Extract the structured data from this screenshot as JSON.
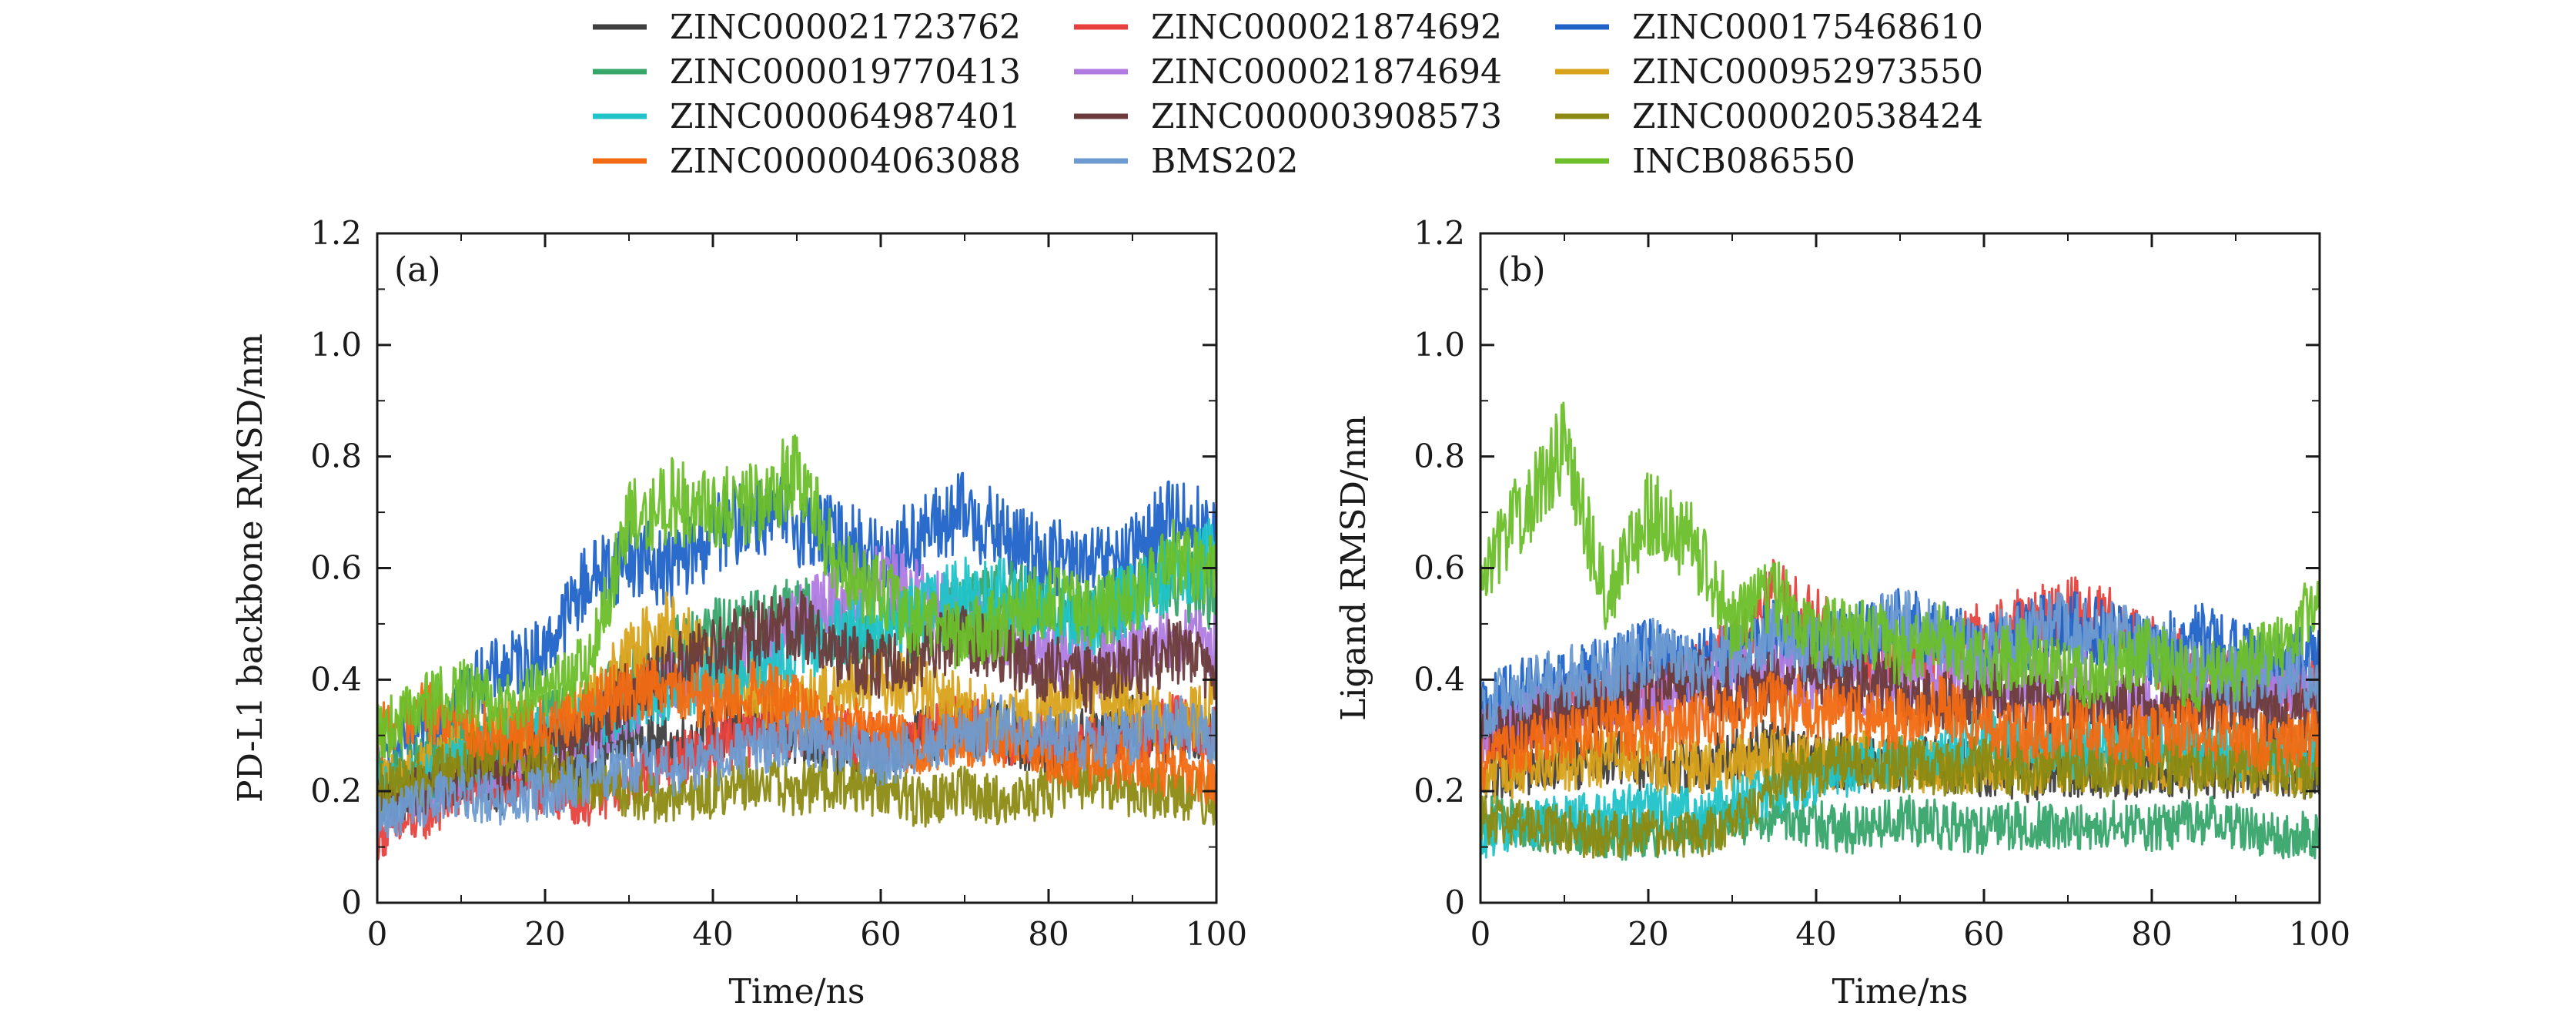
{
  "legend": {
    "items": [
      {
        "label": "ZINC000021723762",
        "color": "#3f3f3f"
      },
      {
        "label": "ZINC000021874692",
        "color": "#e8413d"
      },
      {
        "label": "ZINC000175468610",
        "color": "#1f63c9"
      },
      {
        "label": "ZINC000019770413",
        "color": "#36a56a"
      },
      {
        "label": "ZINC000021874694",
        "color": "#b07be0"
      },
      {
        "label": "ZINC000952973550",
        "color": "#d9a21b"
      },
      {
        "label": "ZINC000064987401",
        "color": "#20c3c8"
      },
      {
        "label": "ZINC000003908573",
        "color": "#6b3b3b"
      },
      {
        "label": "ZINC000020538424",
        "color": "#8c8a12"
      },
      {
        "label": "ZINC000004063088",
        "color": "#f26a12"
      },
      {
        "label": "BMS202",
        "color": "#6d9bd1"
      },
      {
        "label": "INCB086550",
        "color": "#6cbf2a"
      }
    ]
  },
  "chart_data": [
    {
      "type": "line",
      "panel_label": "(a)",
      "xlabel": "Time/ns",
      "ylabel": "PD-L1 backbone RMSD/nm",
      "xlim": [
        0,
        100
      ],
      "ylim": [
        0,
        1.2
      ],
      "xticks": [
        "0",
        "20",
        "40",
        "60",
        "80",
        "100"
      ],
      "yticks": [
        "0",
        "0.2",
        "0.4",
        "0.6",
        "0.8",
        "1.0",
        "1.2"
      ],
      "x": [
        0,
        5,
        10,
        15,
        20,
        25,
        30,
        35,
        40,
        45,
        50,
        55,
        60,
        65,
        70,
        75,
        80,
        85,
        90,
        95,
        100
      ],
      "series": [
        {
          "name": "ZINC000021723762",
          "values": [
            0.17,
            0.22,
            0.24,
            0.2,
            0.22,
            0.25,
            0.3,
            0.28,
            0.3,
            0.32,
            0.3,
            0.28,
            0.26,
            0.3,
            0.32,
            0.3,
            0.28,
            0.3,
            0.32,
            0.3,
            0.3
          ]
        },
        {
          "name": "ZINC000021874692",
          "values": [
            0.12,
            0.15,
            0.2,
            0.22,
            0.2,
            0.18,
            0.22,
            0.25,
            0.28,
            0.3,
            0.32,
            0.3,
            0.28,
            0.3,
            0.32,
            0.3,
            0.3,
            0.28,
            0.3,
            0.32,
            0.3
          ]
        },
        {
          "name": "ZINC000175468610",
          "values": [
            0.25,
            0.3,
            0.38,
            0.42,
            0.45,
            0.58,
            0.62,
            0.6,
            0.66,
            0.7,
            0.68,
            0.65,
            0.62,
            0.66,
            0.7,
            0.65,
            0.62,
            0.6,
            0.62,
            0.7,
            0.65
          ]
        },
        {
          "name": "ZINC000019770413",
          "values": [
            0.22,
            0.25,
            0.28,
            0.3,
            0.32,
            0.35,
            0.4,
            0.45,
            0.48,
            0.5,
            0.52,
            0.5,
            0.48,
            0.5,
            0.52,
            0.55,
            0.52,
            0.5,
            0.55,
            0.58,
            0.55
          ]
        },
        {
          "name": "ZINC000021874694",
          "values": [
            0.18,
            0.2,
            0.22,
            0.25,
            0.28,
            0.3,
            0.35,
            0.4,
            0.42,
            0.45,
            0.5,
            0.55,
            0.58,
            0.55,
            0.5,
            0.48,
            0.45,
            0.42,
            0.45,
            0.48,
            0.45
          ]
        },
        {
          "name": "ZINC000952973550",
          "values": [
            0.2,
            0.25,
            0.28,
            0.32,
            0.3,
            0.35,
            0.45,
            0.5,
            0.42,
            0.38,
            0.35,
            0.38,
            0.4,
            0.38,
            0.35,
            0.32,
            0.35,
            0.38,
            0.35,
            0.32,
            0.35
          ]
        },
        {
          "name": "ZINC000064987401",
          "values": [
            0.2,
            0.22,
            0.25,
            0.28,
            0.3,
            0.32,
            0.35,
            0.38,
            0.4,
            0.42,
            0.45,
            0.48,
            0.5,
            0.52,
            0.55,
            0.55,
            0.52,
            0.5,
            0.55,
            0.6,
            0.62
          ]
        },
        {
          "name": "ZINC000003908573",
          "values": [
            0.18,
            0.2,
            0.22,
            0.25,
            0.28,
            0.3,
            0.38,
            0.42,
            0.45,
            0.48,
            0.5,
            0.45,
            0.42,
            0.45,
            0.48,
            0.45,
            0.42,
            0.4,
            0.42,
            0.45,
            0.42
          ]
        },
        {
          "name": "ZINC000020538424",
          "values": [
            0.2,
            0.22,
            0.25,
            0.28,
            0.25,
            0.22,
            0.2,
            0.18,
            0.2,
            0.22,
            0.2,
            0.22,
            0.2,
            0.18,
            0.2,
            0.18,
            0.2,
            0.22,
            0.2,
            0.2,
            0.18
          ]
        },
        {
          "name": "ZINC000004063088",
          "values": [
            0.3,
            0.35,
            0.32,
            0.3,
            0.32,
            0.35,
            0.38,
            0.4,
            0.36,
            0.38,
            0.35,
            0.32,
            0.3,
            0.28,
            0.3,
            0.28,
            0.26,
            0.25,
            0.25,
            0.24,
            0.22
          ]
        },
        {
          "name": "BMS202",
          "values": [
            0.15,
            0.18,
            0.2,
            0.18,
            0.2,
            0.22,
            0.25,
            0.24,
            0.26,
            0.28,
            0.3,
            0.28,
            0.26,
            0.28,
            0.3,
            0.32,
            0.3,
            0.28,
            0.3,
            0.32,
            0.3
          ]
        },
        {
          "name": "INCB086550",
          "values": [
            0.3,
            0.35,
            0.38,
            0.35,
            0.38,
            0.42,
            0.68,
            0.72,
            0.7,
            0.72,
            0.78,
            0.6,
            0.55,
            0.5,
            0.48,
            0.5,
            0.55,
            0.52,
            0.55,
            0.62,
            0.6
          ]
        }
      ]
    },
    {
      "type": "line",
      "panel_label": "(b)",
      "xlabel": "Time/ns",
      "ylabel": "Ligand RMSD/nm",
      "xlim": [
        0,
        100
      ],
      "ylim": [
        0,
        1.2
      ],
      "xticks": [
        "0",
        "20",
        "40",
        "60",
        "80",
        "100"
      ],
      "yticks": [
        "0",
        "0.2",
        "0.4",
        "0.6",
        "0.8",
        "1.0",
        "1.2"
      ],
      "x": [
        0,
        5,
        10,
        15,
        20,
        25,
        30,
        35,
        40,
        45,
        50,
        55,
        60,
        65,
        70,
        75,
        80,
        85,
        90,
        95,
        100
      ],
      "series": [
        {
          "name": "ZINC000021723762",
          "values": [
            0.22,
            0.24,
            0.25,
            0.26,
            0.25,
            0.24,
            0.26,
            0.28,
            0.26,
            0.25,
            0.24,
            0.25,
            0.24,
            0.23,
            0.24,
            0.23,
            0.24,
            0.23,
            0.24,
            0.23,
            0.24
          ]
        },
        {
          "name": "ZINC000021874692",
          "values": [
            0.3,
            0.32,
            0.35,
            0.36,
            0.38,
            0.4,
            0.45,
            0.55,
            0.5,
            0.45,
            0.42,
            0.45,
            0.48,
            0.5,
            0.52,
            0.5,
            0.45,
            0.42,
            0.4,
            0.38,
            0.4
          ]
        },
        {
          "name": "ZINC000175468610",
          "values": [
            0.35,
            0.38,
            0.4,
            0.42,
            0.45,
            0.42,
            0.45,
            0.48,
            0.45,
            0.48,
            0.5,
            0.48,
            0.45,
            0.48,
            0.5,
            0.48,
            0.45,
            0.48,
            0.45,
            0.42,
            0.45
          ]
        },
        {
          "name": "ZINC000019770413",
          "values": [
            0.15,
            0.14,
            0.13,
            0.12,
            0.12,
            0.13,
            0.14,
            0.15,
            0.14,
            0.13,
            0.15,
            0.14,
            0.13,
            0.14,
            0.13,
            0.14,
            0.13,
            0.15,
            0.14,
            0.12,
            0.12
          ]
        },
        {
          "name": "ZINC000021874694",
          "values": [
            0.3,
            0.32,
            0.35,
            0.38,
            0.36,
            0.38,
            0.4,
            0.42,
            0.4,
            0.38,
            0.4,
            0.42,
            0.4,
            0.38,
            0.4,
            0.38,
            0.36,
            0.38,
            0.4,
            0.38,
            0.36
          ]
        },
        {
          "name": "ZINC000952973550",
          "values": [
            0.22,
            0.24,
            0.25,
            0.26,
            0.25,
            0.24,
            0.25,
            0.26,
            0.25,
            0.26,
            0.25,
            0.24,
            0.25,
            0.24,
            0.25,
            0.24,
            0.25,
            0.26,
            0.25,
            0.24,
            0.25
          ]
        },
        {
          "name": "ZINC000064987401",
          "values": [
            0.12,
            0.14,
            0.15,
            0.16,
            0.17,
            0.16,
            0.18,
            0.2,
            0.22,
            0.24,
            0.25,
            0.28,
            0.3,
            0.28,
            0.27,
            0.28,
            0.3,
            0.28,
            0.27,
            0.28,
            0.27
          ]
        },
        {
          "name": "ZINC000003908573",
          "values": [
            0.3,
            0.32,
            0.35,
            0.36,
            0.38,
            0.4,
            0.38,
            0.4,
            0.42,
            0.4,
            0.38,
            0.36,
            0.38,
            0.36,
            0.35,
            0.36,
            0.35,
            0.36,
            0.35,
            0.34,
            0.35
          ]
        },
        {
          "name": "ZINC000020538424",
          "values": [
            0.15,
            0.14,
            0.13,
            0.12,
            0.13,
            0.12,
            0.14,
            0.22,
            0.24,
            0.25,
            0.25,
            0.24,
            0.25,
            0.24,
            0.25,
            0.24,
            0.25,
            0.24,
            0.25,
            0.24,
            0.23
          ]
        },
        {
          "name": "ZINC000004063088",
          "values": [
            0.25,
            0.28,
            0.3,
            0.32,
            0.3,
            0.32,
            0.34,
            0.36,
            0.35,
            0.34,
            0.33,
            0.35,
            0.32,
            0.3,
            0.32,
            0.3,
            0.3,
            0.32,
            0.3,
            0.28,
            0.3
          ]
        },
        {
          "name": "BMS202",
          "values": [
            0.35,
            0.38,
            0.4,
            0.42,
            0.45,
            0.42,
            0.45,
            0.48,
            0.45,
            0.48,
            0.5,
            0.48,
            0.45,
            0.48,
            0.5,
            0.48,
            0.45,
            0.42,
            0.4,
            0.42,
            0.4
          ]
        },
        {
          "name": "INCB086550",
          "values": [
            0.6,
            0.7,
            0.82,
            0.55,
            0.7,
            0.65,
            0.5,
            0.55,
            0.48,
            0.5,
            0.45,
            0.48,
            0.42,
            0.45,
            0.4,
            0.42,
            0.45,
            0.4,
            0.42,
            0.45,
            0.55
          ]
        }
      ]
    }
  ]
}
